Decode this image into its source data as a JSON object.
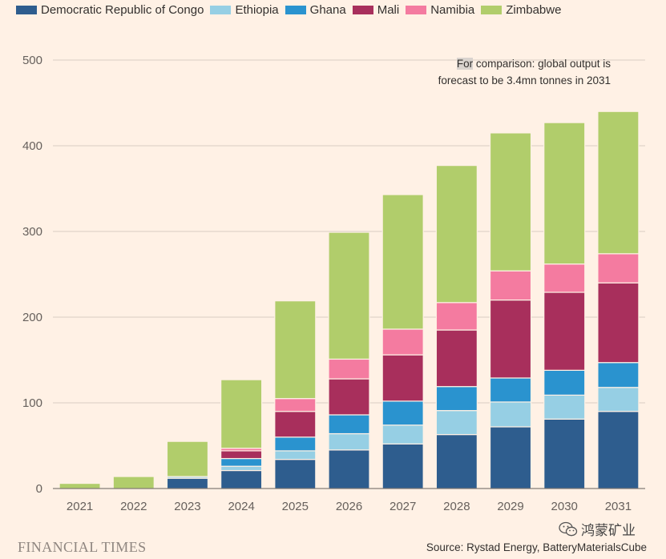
{
  "legend": {
    "items": [
      {
        "label": "Democratic Republic of Congo",
        "color": "#2E5D8E"
      },
      {
        "label": "Ethiopia",
        "color": "#96CFE4"
      },
      {
        "label": "Ghana",
        "color": "#2A93CF"
      },
      {
        "label": "Mali",
        "color": "#A82F5C"
      },
      {
        "label": "Namibia",
        "color": "#F47BA0"
      },
      {
        "label": "Zimbabwe",
        "color": "#B1CD6B"
      }
    ]
  },
  "annotation": {
    "highlight": "For",
    "rest": " comparison: global output is forecast to be 3.4mn tonnes in 2031"
  },
  "footer": {
    "brand": "FINANCIAL TIMES",
    "watermark": "鸿蒙矿业",
    "source": "Source: Rystad Energy, BatteryMaterialsCube"
  },
  "chart_data": {
    "type": "bar",
    "stacked": true,
    "title": "",
    "xlabel": "",
    "ylabel": "",
    "ylim": [
      0,
      500
    ],
    "yticks": [
      0,
      100,
      200,
      300,
      400,
      500
    ],
    "grid": true,
    "legend_position": "top",
    "categories": [
      "2021",
      "2022",
      "2023",
      "2024",
      "2025",
      "2026",
      "2027",
      "2028",
      "2029",
      "2030",
      "2031"
    ],
    "series": [
      {
        "name": "Democratic Republic of Congo",
        "color": "#2E5D8E",
        "values": [
          0,
          0,
          12,
          21,
          34,
          45,
          52,
          63,
          72,
          81,
          90
        ]
      },
      {
        "name": "Ethiopia",
        "color": "#96CFE4",
        "values": [
          0,
          0,
          2,
          5,
          10,
          19,
          22,
          28,
          29,
          28,
          28
        ]
      },
      {
        "name": "Ghana",
        "color": "#2A93CF",
        "values": [
          0,
          0,
          0,
          9,
          16,
          22,
          28,
          28,
          28,
          29,
          29
        ]
      },
      {
        "name": "Mali",
        "color": "#A82F5C",
        "values": [
          0,
          0,
          0,
          9,
          30,
          42,
          54,
          66,
          91,
          91,
          93
        ]
      },
      {
        "name": "Namibia",
        "color": "#F47BA0",
        "values": [
          0,
          0,
          0,
          3,
          15,
          23,
          30,
          32,
          34,
          33,
          34
        ]
      },
      {
        "name": "Zimbabwe",
        "color": "#B1CD6B",
        "values": [
          6,
          14,
          41,
          80,
          114,
          148,
          157,
          160,
          161,
          165,
          166
        ]
      }
    ]
  }
}
